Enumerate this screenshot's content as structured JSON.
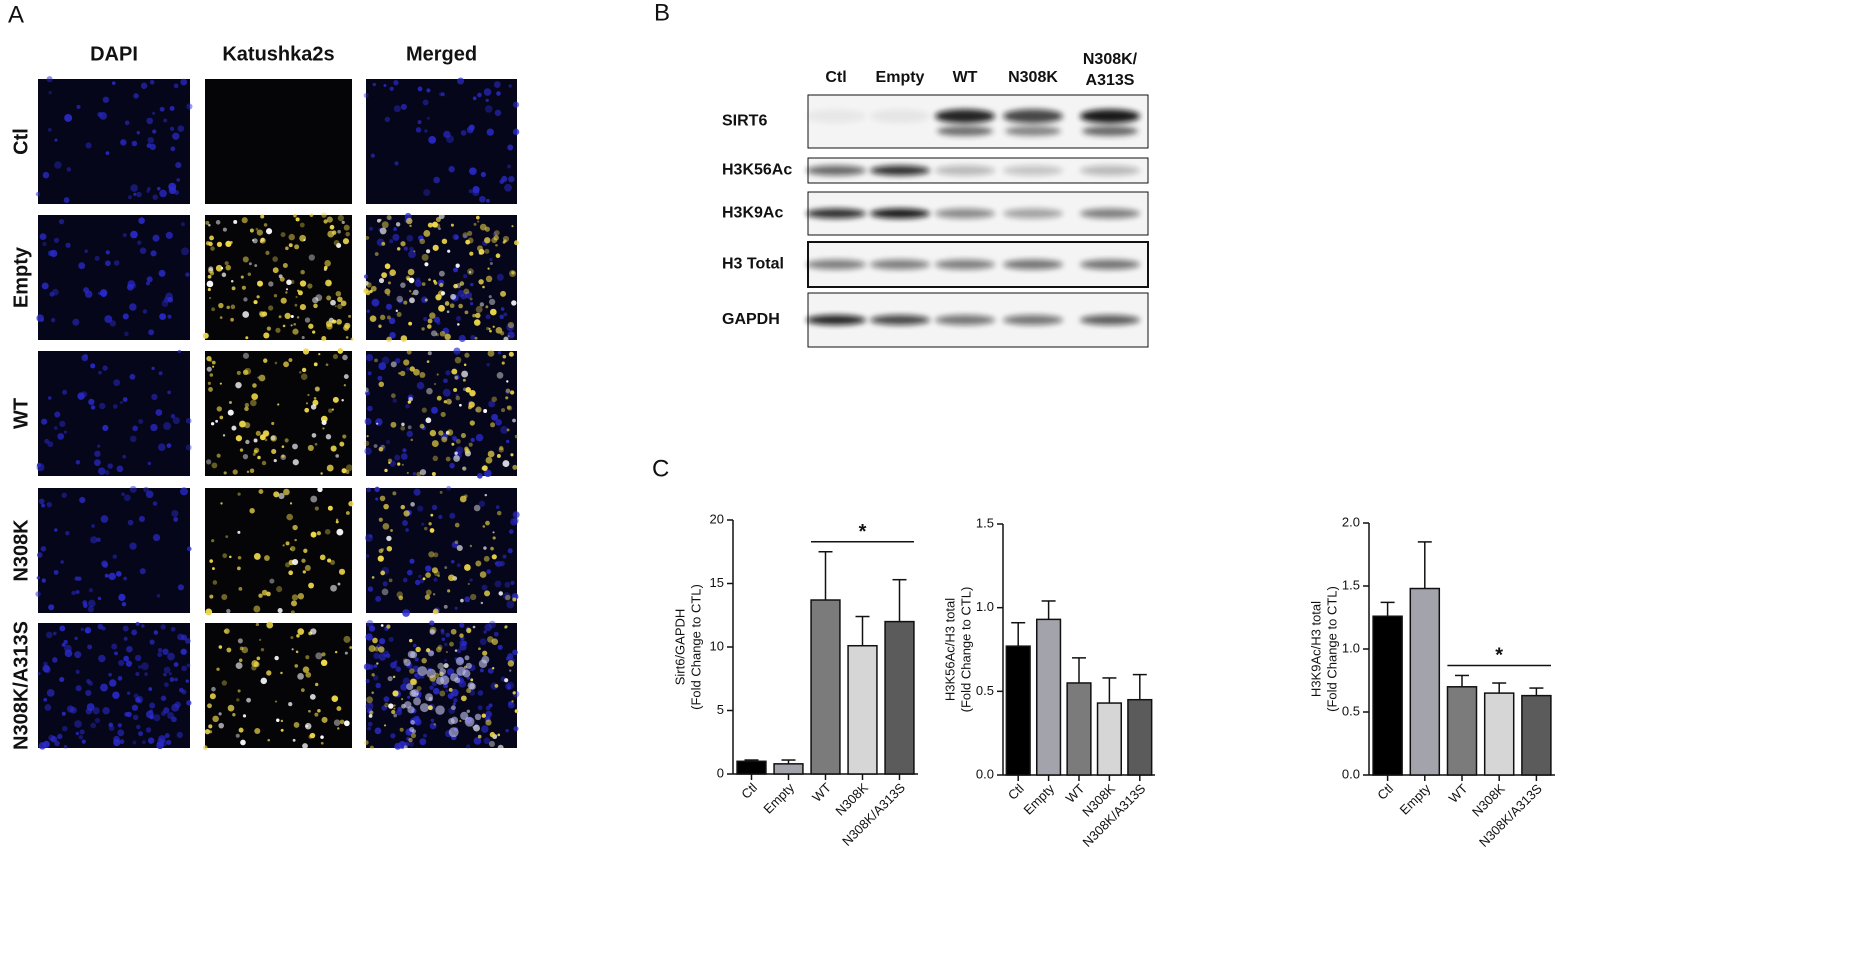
{
  "panel_a": {
    "label": "A",
    "columns": [
      "DAPI",
      "Katushka2s",
      "Merged"
    ],
    "rows": [
      "Ctl",
      "Empty",
      "WT",
      "N308K",
      "N308K/A313S"
    ]
  },
  "panel_b": {
    "label": "B",
    "lanes": [
      "Ctl",
      "Empty",
      "WT",
      "N308K",
      [
        "N308K/",
        "A313S"
      ]
    ],
    "bands": [
      "SIRT6",
      "H3K56Ac",
      "H3K9Ac",
      "H3 Total",
      "GAPDH"
    ]
  },
  "panel_c": {
    "label": "C"
  },
  "chart_data": [
    {
      "type": "bar",
      "ylabel": [
        "Sirt6/GAPDH",
        "(Fold Change to CTL)"
      ],
      "categories": [
        "Ctl",
        "Empty",
        "WT",
        "N308K",
        "N308K/A313S"
      ],
      "values": [
        1.0,
        0.8,
        13.7,
        10.1,
        12.0
      ],
      "errors": [
        0.1,
        0.3,
        3.8,
        2.3,
        3.3
      ],
      "colors": [
        "#000000",
        "#a3a3ab",
        "#7b7b7b",
        "#d6d6d6",
        "#5b5b5b"
      ],
      "ylim": [
        0,
        20
      ],
      "yticks": [
        0,
        5,
        10,
        15,
        20
      ],
      "annotation": "*"
    },
    {
      "type": "bar",
      "ylabel": [
        "H3K56Ac/H3 total",
        "(Fold Change to CTL)"
      ],
      "categories": [
        "Ctl",
        "Empty",
        "WT",
        "N308K",
        "N308K/A313S"
      ],
      "values": [
        0.77,
        0.93,
        0.55,
        0.43,
        0.45
      ],
      "errors": [
        0.14,
        0.11,
        0.15,
        0.15,
        0.15
      ],
      "colors": [
        "#000000",
        "#a3a3ab",
        "#7b7b7b",
        "#d6d6d6",
        "#5b5b5b"
      ],
      "ylim": [
        0,
        1.5
      ],
      "yticks": [
        {
          "value": 0,
          "label": "0.0"
        },
        0.5,
        {
          "value": 1,
          "label": "1.0"
        },
        1.5
      ]
    },
    {
      "type": "bar",
      "ylabel": [
        "H3K9Ac/H3 total",
        "(Fold Change to CTL)"
      ],
      "categories": [
        "Ctl",
        "Empty",
        "WT",
        "N308K",
        "N308K/A313S"
      ],
      "values": [
        1.26,
        1.48,
        0.7,
        0.65,
        0.63
      ],
      "errors": [
        0.11,
        0.37,
        0.09,
        0.08,
        0.06
      ],
      "colors": [
        "#000000",
        "#a3a3ab",
        "#7b7b7b",
        "#d6d6d6",
        "#5b5b5b"
      ],
      "ylim": [
        0,
        2
      ],
      "yticks": [
        {
          "value": 0,
          "label": "0.0"
        },
        0.5,
        {
          "value": 1,
          "label": "1.0"
        },
        1.5,
        {
          "value": 2,
          "label": "2.0"
        }
      ],
      "annotation": "*"
    }
  ]
}
